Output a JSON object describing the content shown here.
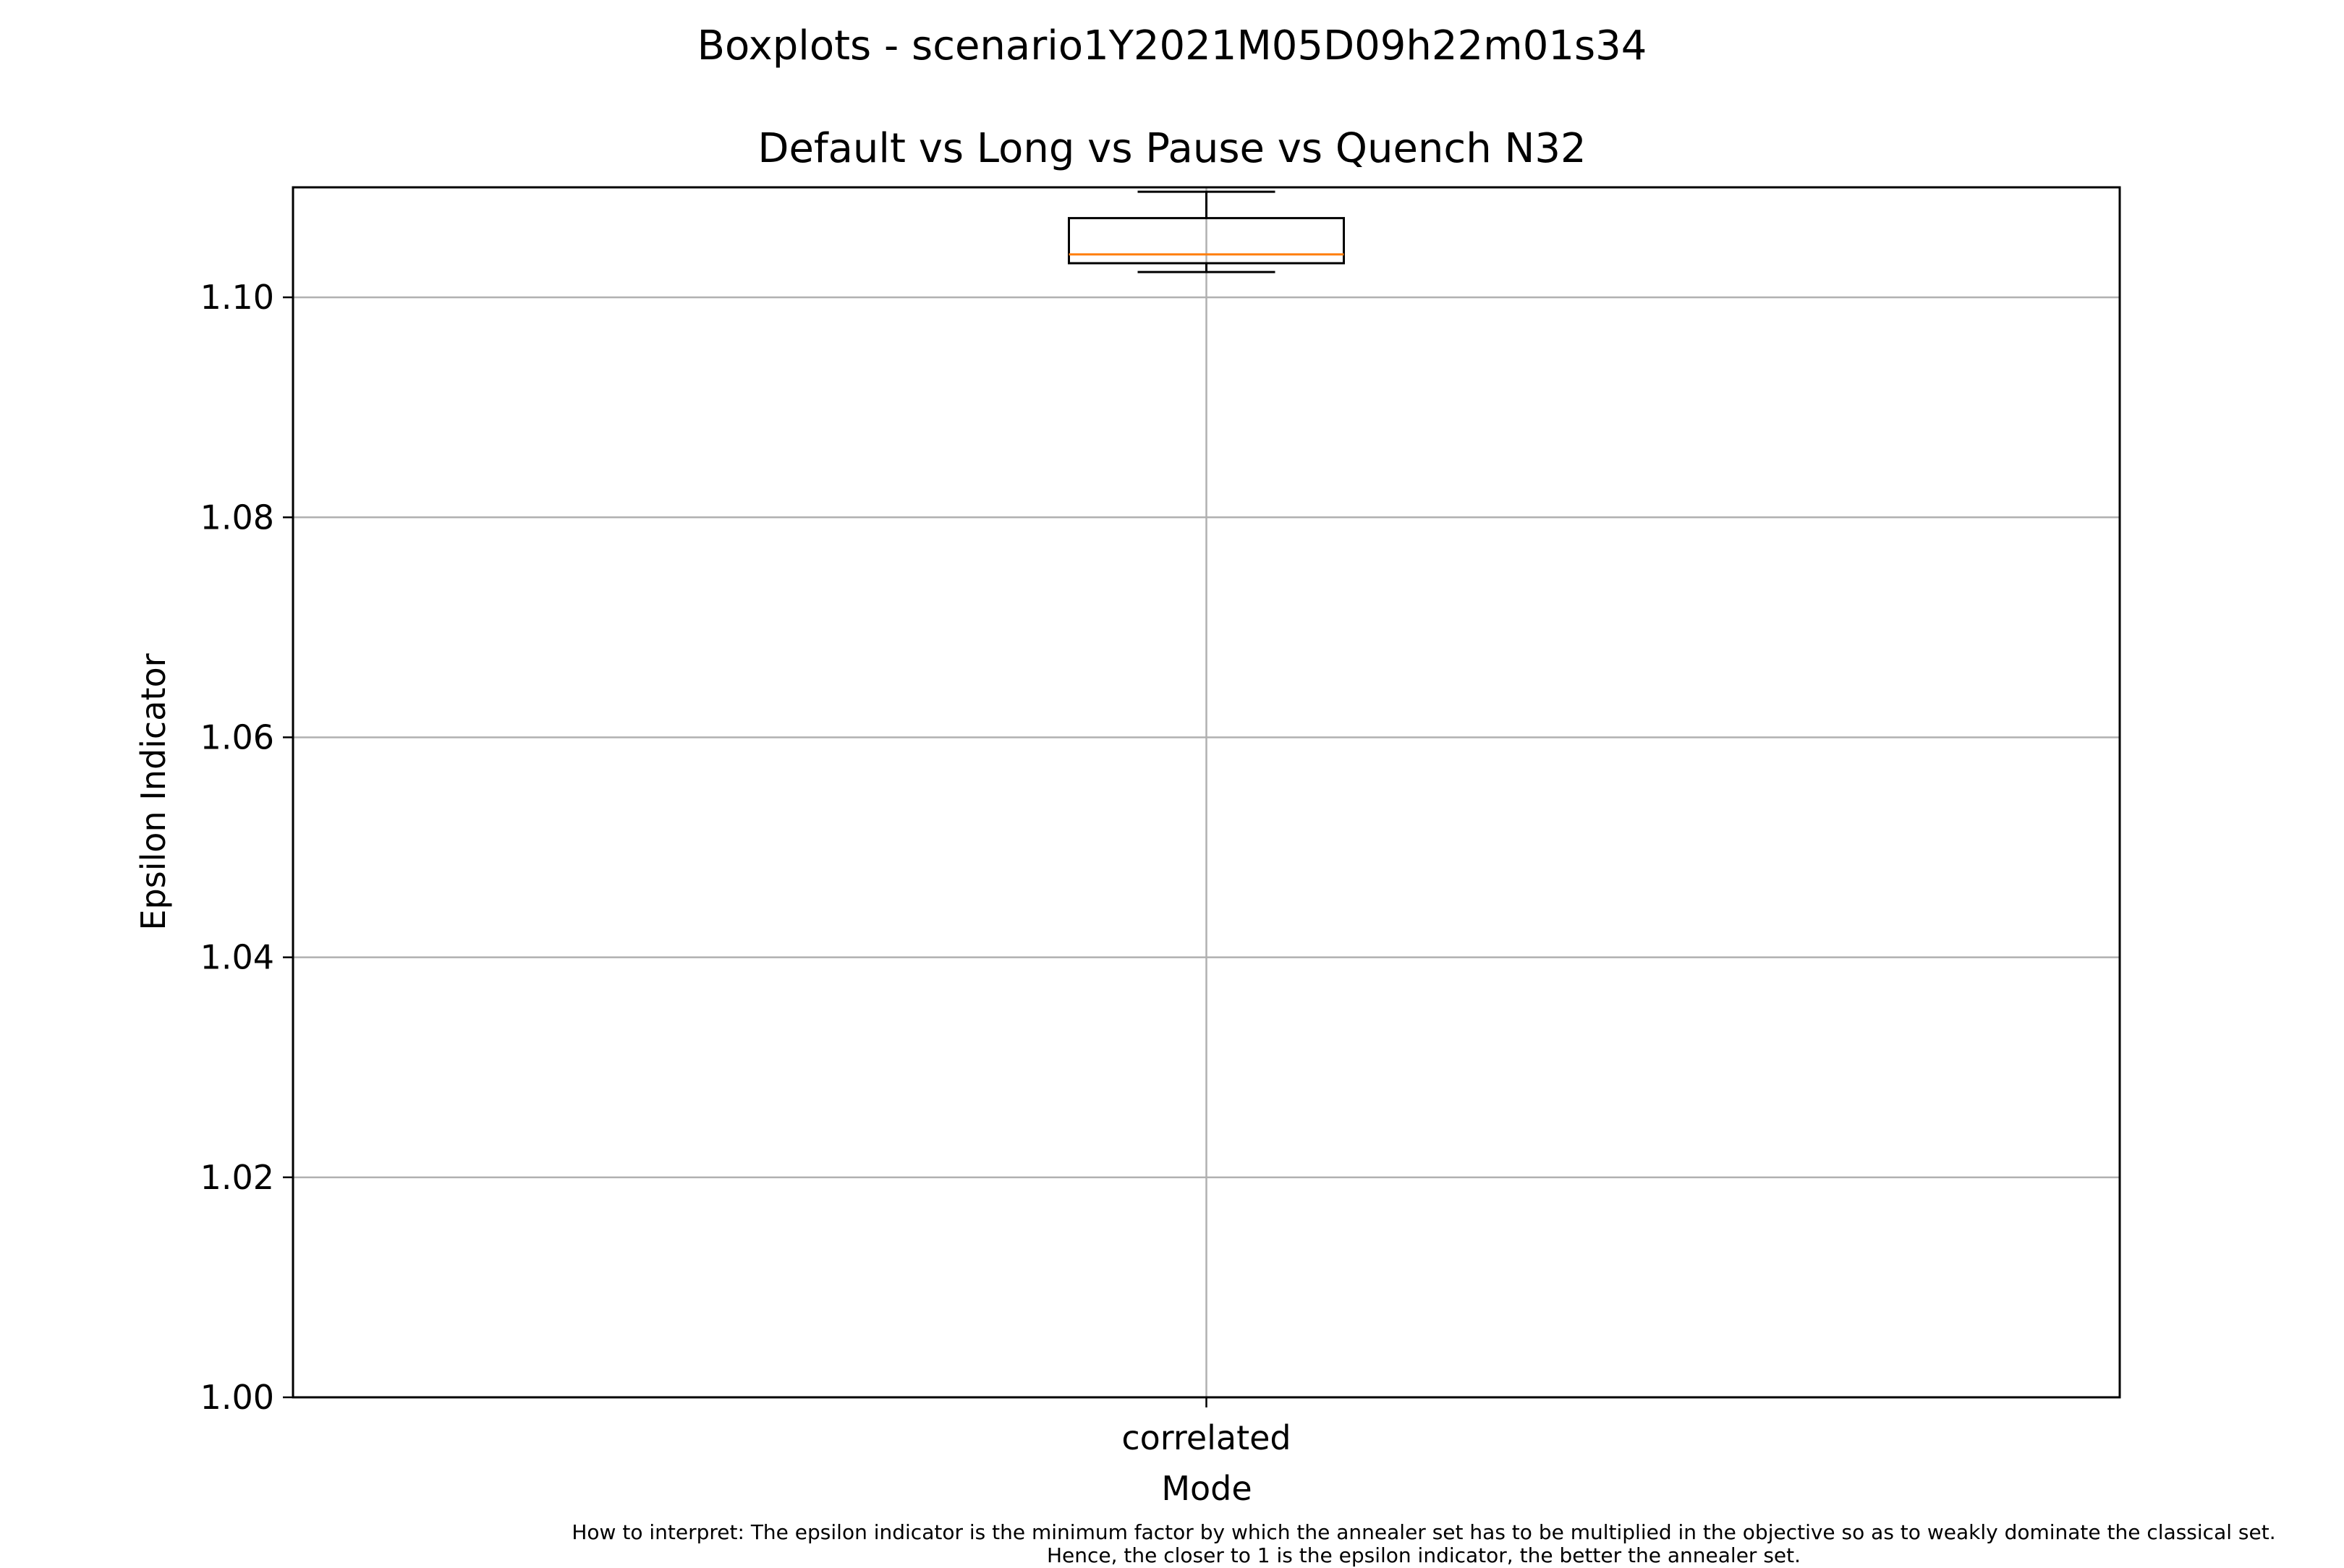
{
  "chart_data": {
    "type": "box",
    "suptitle": "Boxplots - scenario1Y2021M05D09h22m01s34",
    "title": "Default vs Long vs Pause vs Quench N32",
    "xlabel": "Mode",
    "ylabel": "Epsilon Indicator",
    "categories": [
      "correlated"
    ],
    "boxes": [
      {
        "category": "correlated",
        "whisker_low": 1.1023,
        "q1": 1.1031,
        "median": 1.1039,
        "q3": 1.1072,
        "whisker_high": 1.1096
      }
    ],
    "ylim": [
      1.0,
      1.11
    ],
    "yticks": [
      "1.00",
      "1.02",
      "1.04",
      "1.06",
      "1.08",
      "1.10"
    ],
    "grid": true,
    "colors": {
      "median": "#ff7f0e",
      "box": "#000000",
      "grid": "#b0b0b0"
    }
  },
  "footnote": {
    "line1": "How to interpret: The epsilon indicator is the minimum factor by which the annealer set has to be multiplied in the objective so as to weakly dominate the classical set.",
    "line2": "Hence, the closer to 1 is the epsilon indicator, the better the annealer set."
  }
}
